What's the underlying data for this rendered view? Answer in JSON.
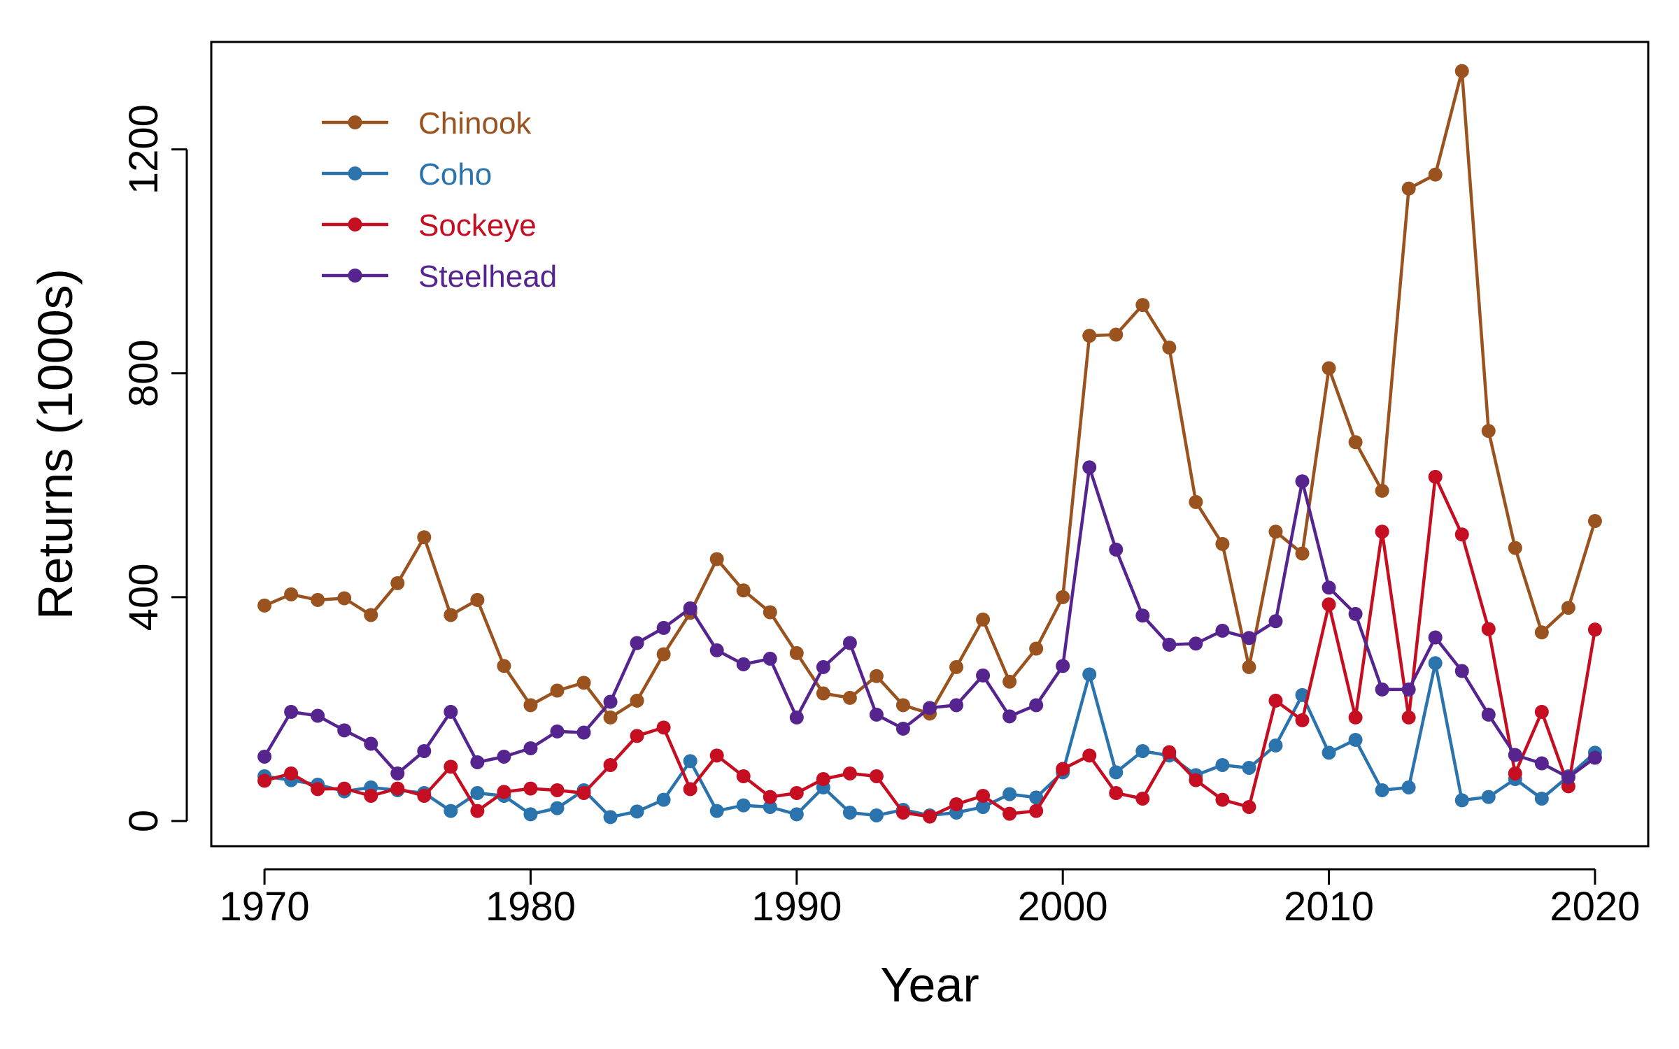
{
  "chart_data": {
    "type": "line",
    "title": "",
    "xlabel": "Year",
    "ylabel": "Returns (1000s)",
    "xlim": [
      1968,
      2022
    ],
    "ylim": [
      -45,
      1392
    ],
    "xticks": [
      1970,
      1980,
      1990,
      2000,
      2010,
      2020
    ],
    "yticks": [
      0,
      400,
      800,
      1200
    ],
    "grid": false,
    "legend_position": "top-left",
    "x": [
      1970,
      1971,
      1972,
      1973,
      1974,
      1975,
      1976,
      1977,
      1978,
      1979,
      1980,
      1981,
      1982,
      1983,
      1984,
      1985,
      1986,
      1987,
      1988,
      1989,
      1990,
      1991,
      1992,
      1993,
      1994,
      1995,
      1996,
      1997,
      1998,
      1999,
      2000,
      2001,
      2002,
      2003,
      2004,
      2005,
      2006,
      2007,
      2008,
      2009,
      2010,
      2011,
      2012,
      2013,
      2014,
      2015,
      2016,
      2017,
      2018,
      2019,
      2020
    ],
    "series": [
      {
        "name": "Chinook",
        "color": "#9a531f",
        "values": [
          385,
          405,
          395,
          398,
          368,
          425,
          507,
          368,
          395,
          277,
          207,
          233,
          247,
          185,
          215,
          298,
          372,
          468,
          412,
          373,
          300,
          228,
          220,
          259,
          207,
          192,
          275,
          360,
          249,
          308,
          400,
          867,
          869,
          922,
          846,
          570,
          495,
          275,
          517,
          478,
          809,
          677,
          590,
          1130,
          1155,
          1340,
          697,
          488,
          337,
          381,
          536
        ]
      },
      {
        "name": "Coho",
        "color": "#2a73ad",
        "values": [
          80,
          73,
          65,
          53,
          60,
          55,
          50,
          18,
          50,
          45,
          12,
          23,
          55,
          7,
          17,
          38,
          107,
          18,
          28,
          25,
          12,
          60,
          15,
          10,
          20,
          10,
          15,
          25,
          48,
          42,
          87,
          262,
          87,
          125,
          117,
          82,
          100,
          95,
          135,
          225,
          122,
          145,
          55,
          60,
          282,
          37,
          43,
          75,
          40,
          80,
          122
        ]
      },
      {
        "name": "Sockeye",
        "color": "#c50e21",
        "values": [
          72,
          85,
          57,
          58,
          45,
          58,
          45,
          97,
          18,
          52,
          58,
          55,
          50,
          100,
          152,
          167,
          57,
          117,
          80,
          43,
          50,
          75,
          85,
          80,
          15,
          8,
          30,
          45,
          13,
          18,
          93,
          117,
          50,
          40,
          123,
          73,
          38,
          25,
          215,
          180,
          387,
          185,
          517,
          185,
          615,
          512,
          343,
          85,
          195,
          62,
          342
        ]
      },
      {
        "name": "Steelhead",
        "color": "#55248f",
        "values": [
          115,
          195,
          188,
          162,
          138,
          85,
          125,
          195,
          105,
          115,
          130,
          160,
          158,
          213,
          318,
          345,
          380,
          305,
          280,
          290,
          185,
          275,
          318,
          190,
          165,
          202,
          207,
          260,
          187,
          207,
          277,
          632,
          485,
          367,
          315,
          317,
          340,
          327,
          357,
          607,
          417,
          370,
          235,
          235,
          328,
          268,
          190,
          118,
          103,
          78,
          113
        ]
      }
    ]
  }
}
